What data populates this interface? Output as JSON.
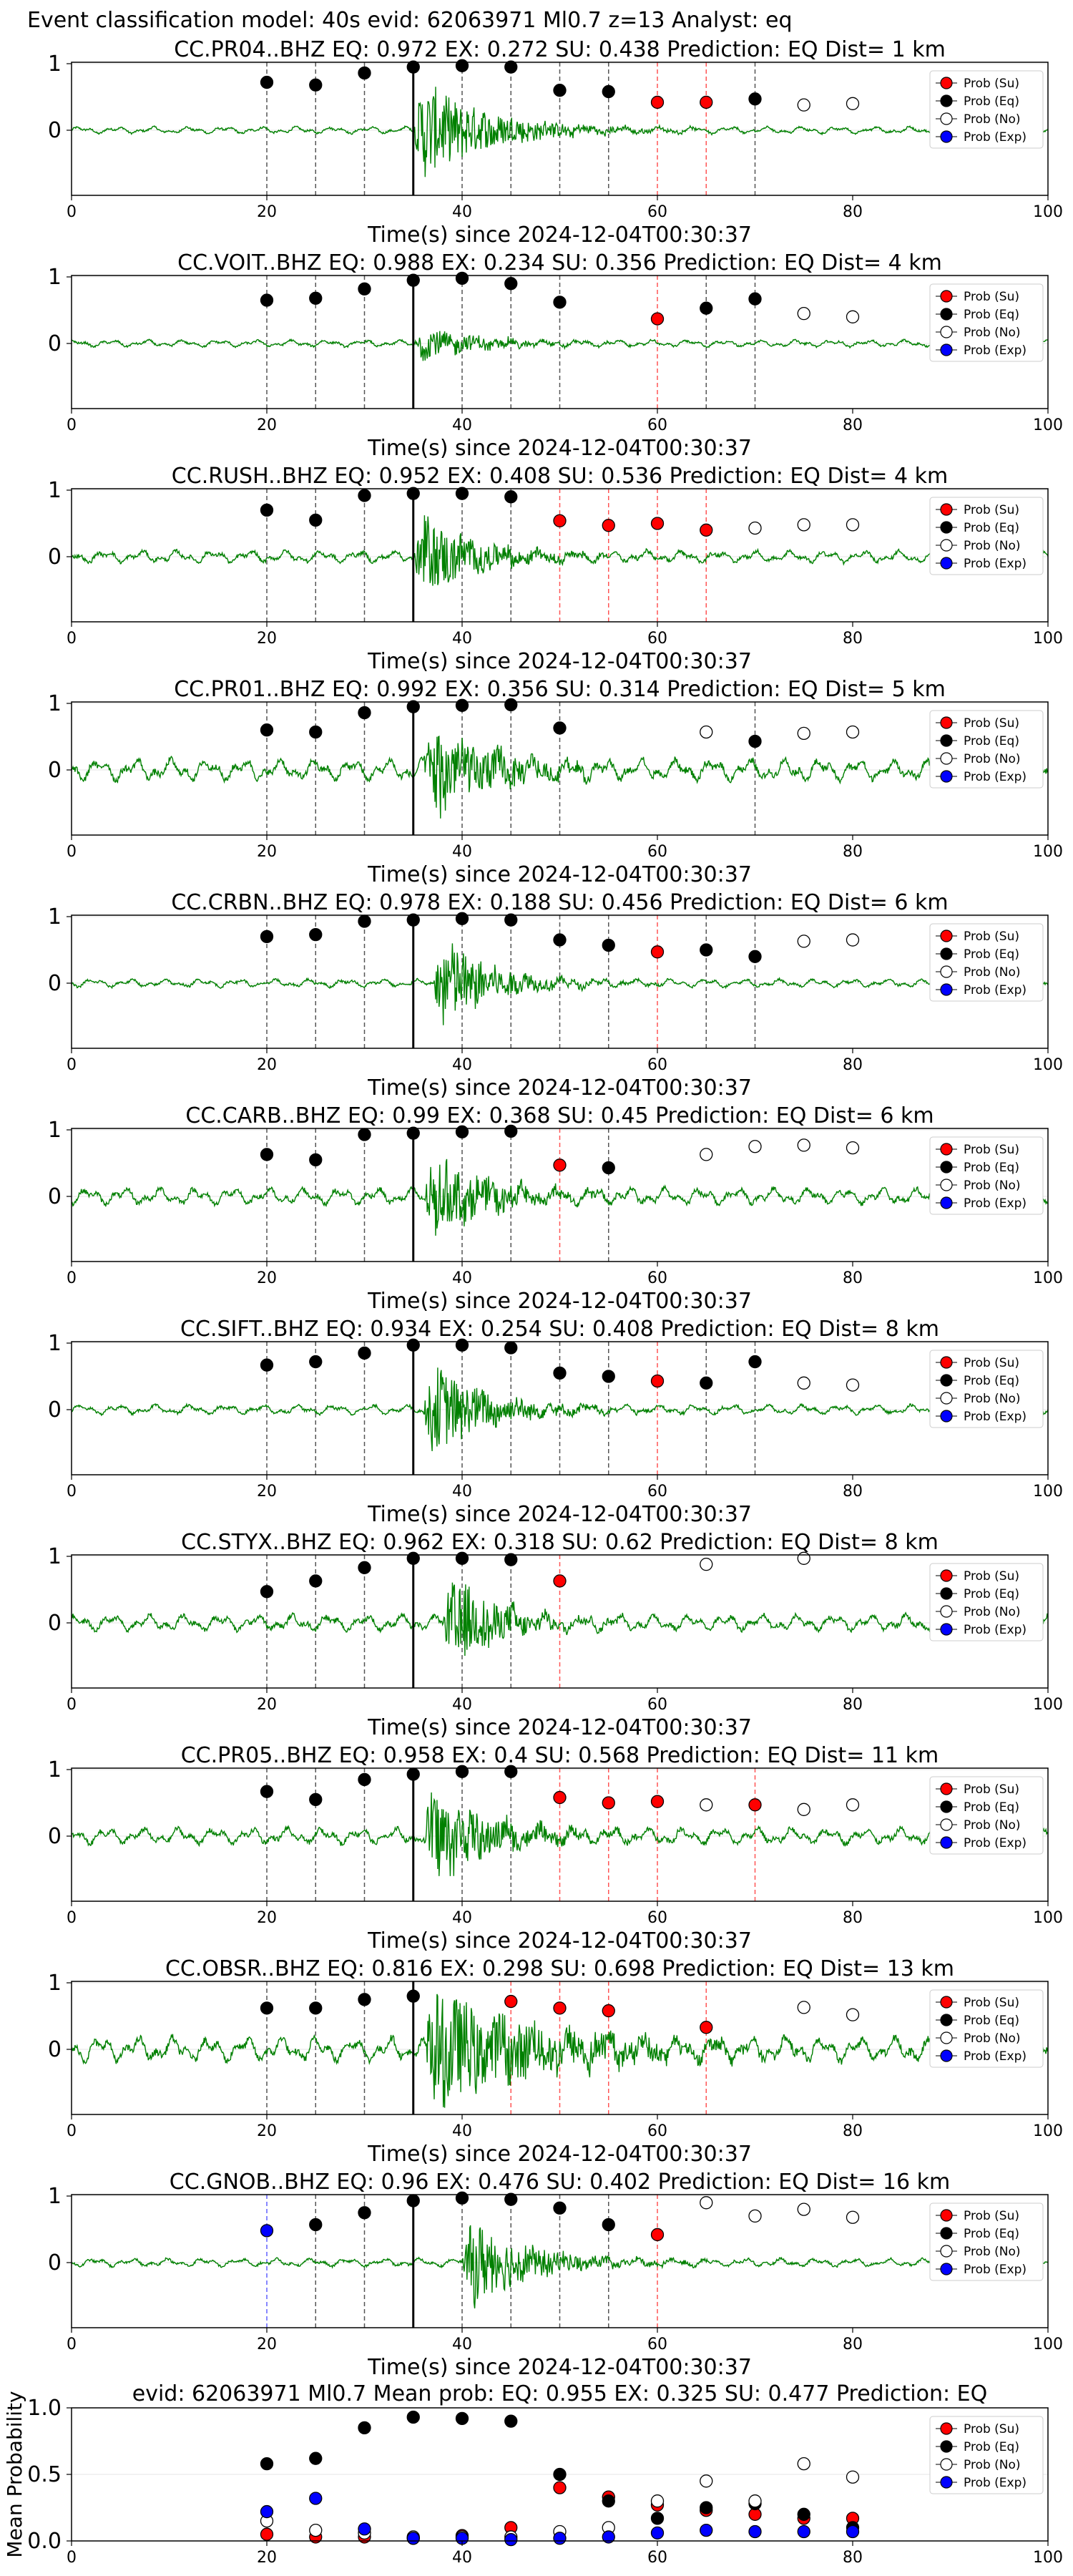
{
  "figure_title": "Event classification model: 40s evid: 62063971 Ml0.7 z=13 Analyst: eq",
  "legend_labels": [
    "Prob (Su)",
    "Prob (Eq)",
    "Prob (No)",
    "Prob (Exp)"
  ],
  "colors": {
    "su": "#ff0000",
    "eq": "#000000",
    "no": "#ffffff",
    "exp": "#0000ff",
    "trace": "#008000"
  },
  "chart_data": [
    {
      "type": "scatter",
      "station": "CC.PR04..BHZ",
      "title": "CC.PR04..BHZ   EQ: 0.972   EX: 0.272   SU: 0.438   Prediction: EQ    Dist= 1 km",
      "xlabel": "Time(s) since 2024-12-04T00:30:37",
      "xlim": [
        0,
        100
      ],
      "xticks": [
        0,
        20,
        40,
        60,
        80,
        100
      ],
      "yticks": [
        0,
        1
      ],
      "trace": {
        "onset": 35,
        "amp": 0.85,
        "noise": 0.05,
        "dur": 7
      },
      "points": [
        {
          "x": 20,
          "y": 0.72,
          "c": "eq"
        },
        {
          "x": 25,
          "y": 0.68,
          "c": "eq"
        },
        {
          "x": 30,
          "y": 0.86,
          "c": "eq"
        },
        {
          "x": 35,
          "y": 0.95,
          "c": "eq"
        },
        {
          "x": 40,
          "y": 0.97,
          "c": "eq"
        },
        {
          "x": 45,
          "y": 0.95,
          "c": "eq"
        },
        {
          "x": 50,
          "y": 0.6,
          "c": "eq"
        },
        {
          "x": 55,
          "y": 0.58,
          "c": "eq"
        },
        {
          "x": 60,
          "y": 0.42,
          "c": "su"
        },
        {
          "x": 65,
          "y": 0.42,
          "c": "su"
        },
        {
          "x": 70,
          "y": 0.47,
          "c": "eq"
        },
        {
          "x": 75,
          "y": 0.38,
          "c": "no"
        },
        {
          "x": 80,
          "y": 0.4,
          "c": "no"
        }
      ]
    },
    {
      "type": "scatter",
      "station": "CC.VOIT..BHZ",
      "title": "CC.VOIT..BHZ   EQ: 0.988   EX: 0.234   SU: 0.356   Prediction: EQ    Dist= 4 km",
      "xlabel": "Time(s) since 2024-12-04T00:30:37",
      "xlim": [
        0,
        100
      ],
      "xticks": [
        0,
        20,
        40,
        60,
        80,
        100
      ],
      "yticks": [
        0,
        1
      ],
      "trace": {
        "onset": 35,
        "amp": 0.3,
        "noise": 0.05,
        "dur": 6
      },
      "points": [
        {
          "x": 20,
          "y": 0.65,
          "c": "eq"
        },
        {
          "x": 25,
          "y": 0.68,
          "c": "eq"
        },
        {
          "x": 30,
          "y": 0.82,
          "c": "eq"
        },
        {
          "x": 35,
          "y": 0.95,
          "c": "eq"
        },
        {
          "x": 40,
          "y": 0.98,
          "c": "eq"
        },
        {
          "x": 45,
          "y": 0.9,
          "c": "eq"
        },
        {
          "x": 50,
          "y": 0.62,
          "c": "eq"
        },
        {
          "x": 60,
          "y": 0.37,
          "c": "su"
        },
        {
          "x": 65,
          "y": 0.53,
          "c": "eq"
        },
        {
          "x": 70,
          "y": 0.67,
          "c": "eq"
        },
        {
          "x": 75,
          "y": 0.45,
          "c": "no"
        },
        {
          "x": 80,
          "y": 0.4,
          "c": "no"
        }
      ]
    },
    {
      "type": "scatter",
      "station": "CC.RUSH..BHZ",
      "title": "CC.RUSH..BHZ   EQ: 0.952   EX: 0.408   SU: 0.536   Prediction: EQ    Dist= 4 km",
      "xlabel": "Time(s) since 2024-12-04T00:30:37",
      "xlim": [
        0,
        100
      ],
      "xticks": [
        0,
        20,
        40,
        60,
        80,
        100
      ],
      "yticks": [
        0,
        1
      ],
      "trace": {
        "onset": 35,
        "amp": 0.7,
        "noise": 0.09,
        "dur": 6
      },
      "points": [
        {
          "x": 20,
          "y": 0.7,
          "c": "eq"
        },
        {
          "x": 25,
          "y": 0.55,
          "c": "eq"
        },
        {
          "x": 30,
          "y": 0.92,
          "c": "eq"
        },
        {
          "x": 35,
          "y": 0.95,
          "c": "eq"
        },
        {
          "x": 40,
          "y": 0.95,
          "c": "eq"
        },
        {
          "x": 45,
          "y": 0.9,
          "c": "eq"
        },
        {
          "x": 50,
          "y": 0.54,
          "c": "su"
        },
        {
          "x": 55,
          "y": 0.47,
          "c": "su"
        },
        {
          "x": 60,
          "y": 0.5,
          "c": "su"
        },
        {
          "x": 65,
          "y": 0.4,
          "c": "su"
        },
        {
          "x": 70,
          "y": 0.43,
          "c": "no"
        },
        {
          "x": 75,
          "y": 0.48,
          "c": "no"
        },
        {
          "x": 80,
          "y": 0.48,
          "c": "no"
        }
      ]
    },
    {
      "type": "scatter",
      "station": "CC.PR01..BHZ",
      "title": "CC.PR01..BHZ   EQ: 0.992   EX: 0.356   SU: 0.314   Prediction: EQ    Dist= 5 km",
      "xlabel": "Time(s) since 2024-12-04T00:30:37",
      "xlim": [
        0,
        100
      ],
      "xticks": [
        0,
        20,
        40,
        60,
        80,
        100
      ],
      "yticks": [
        0,
        1
      ],
      "trace": {
        "onset": 36,
        "amp": 0.9,
        "noise": 0.16,
        "dur": 6
      },
      "points": [
        {
          "x": 20,
          "y": 0.6,
          "c": "eq"
        },
        {
          "x": 25,
          "y": 0.57,
          "c": "eq"
        },
        {
          "x": 30,
          "y": 0.86,
          "c": "eq"
        },
        {
          "x": 35,
          "y": 0.95,
          "c": "eq"
        },
        {
          "x": 40,
          "y": 0.97,
          "c": "eq"
        },
        {
          "x": 45,
          "y": 0.98,
          "c": "eq"
        },
        {
          "x": 50,
          "y": 0.63,
          "c": "eq"
        },
        {
          "x": 65,
          "y": 0.57,
          "c": "no"
        },
        {
          "x": 70,
          "y": 0.43,
          "c": "eq"
        },
        {
          "x": 75,
          "y": 0.55,
          "c": "no"
        },
        {
          "x": 80,
          "y": 0.57,
          "c": "no"
        }
      ]
    },
    {
      "type": "scatter",
      "station": "CC.CRBN..BHZ",
      "title": "CC.CRBN..BHZ   EQ: 0.978   EX: 0.188   SU: 0.456   Prediction: EQ    Dist= 6 km",
      "xlabel": "Time(s) since 2024-12-04T00:30:37",
      "xlim": [
        0,
        100
      ],
      "xticks": [
        0,
        20,
        40,
        60,
        80,
        100
      ],
      "yticks": [
        0,
        1
      ],
      "trace": {
        "onset": 37,
        "amp": 0.9,
        "noise": 0.06,
        "dur": 5
      },
      "points": [
        {
          "x": 20,
          "y": 0.7,
          "c": "eq"
        },
        {
          "x": 25,
          "y": 0.73,
          "c": "eq"
        },
        {
          "x": 30,
          "y": 0.93,
          "c": "eq"
        },
        {
          "x": 35,
          "y": 0.95,
          "c": "eq"
        },
        {
          "x": 40,
          "y": 0.97,
          "c": "eq"
        },
        {
          "x": 45,
          "y": 0.95,
          "c": "eq"
        },
        {
          "x": 50,
          "y": 0.65,
          "c": "eq"
        },
        {
          "x": 55,
          "y": 0.57,
          "c": "eq"
        },
        {
          "x": 60,
          "y": 0.47,
          "c": "su"
        },
        {
          "x": 65,
          "y": 0.5,
          "c": "eq"
        },
        {
          "x": 70,
          "y": 0.4,
          "c": "eq"
        },
        {
          "x": 75,
          "y": 0.63,
          "c": "no"
        },
        {
          "x": 80,
          "y": 0.65,
          "c": "no"
        }
      ]
    },
    {
      "type": "scatter",
      "station": "CC.CARB..BHZ",
      "title": "CC.CARB..BHZ   EQ: 0.99   EX: 0.368   SU: 0.45   Prediction: EQ    Dist= 6 km",
      "xlabel": "Time(s) since 2024-12-04T00:30:37",
      "xlim": [
        0,
        100
      ],
      "xticks": [
        0,
        20,
        40,
        60,
        80,
        100
      ],
      "yticks": [
        0,
        1
      ],
      "trace": {
        "onset": 36,
        "amp": 0.7,
        "noise": 0.12,
        "dur": 6
      },
      "points": [
        {
          "x": 20,
          "y": 0.63,
          "c": "eq"
        },
        {
          "x": 25,
          "y": 0.55,
          "c": "eq"
        },
        {
          "x": 30,
          "y": 0.93,
          "c": "eq"
        },
        {
          "x": 35,
          "y": 0.95,
          "c": "eq"
        },
        {
          "x": 40,
          "y": 0.97,
          "c": "eq"
        },
        {
          "x": 45,
          "y": 0.98,
          "c": "eq"
        },
        {
          "x": 50,
          "y": 0.47,
          "c": "su"
        },
        {
          "x": 55,
          "y": 0.43,
          "c": "eq"
        },
        {
          "x": 65,
          "y": 0.63,
          "c": "no"
        },
        {
          "x": 70,
          "y": 0.75,
          "c": "no"
        },
        {
          "x": 75,
          "y": 0.77,
          "c": "no"
        },
        {
          "x": 80,
          "y": 0.73,
          "c": "no"
        }
      ]
    },
    {
      "type": "scatter",
      "station": "CC.SIFT..BHZ",
      "title": "CC.SIFT..BHZ   EQ: 0.934   EX: 0.254   SU: 0.408   Prediction: EQ    Dist= 8 km",
      "xlabel": "Time(s) since 2024-12-04T00:30:37",
      "xlim": [
        0,
        100
      ],
      "xticks": [
        0,
        20,
        40,
        60,
        80,
        100
      ],
      "yticks": [
        0,
        1
      ],
      "trace": {
        "onset": 36,
        "amp": 0.8,
        "noise": 0.07,
        "dur": 6
      },
      "points": [
        {
          "x": 20,
          "y": 0.67,
          "c": "eq"
        },
        {
          "x": 25,
          "y": 0.72,
          "c": "eq"
        },
        {
          "x": 30,
          "y": 0.85,
          "c": "eq"
        },
        {
          "x": 35,
          "y": 0.97,
          "c": "eq"
        },
        {
          "x": 40,
          "y": 0.97,
          "c": "eq"
        },
        {
          "x": 45,
          "y": 0.93,
          "c": "eq"
        },
        {
          "x": 50,
          "y": 0.55,
          "c": "eq"
        },
        {
          "x": 55,
          "y": 0.5,
          "c": "eq"
        },
        {
          "x": 60,
          "y": 0.43,
          "c": "su"
        },
        {
          "x": 65,
          "y": 0.4,
          "c": "eq"
        },
        {
          "x": 70,
          "y": 0.72,
          "c": "eq"
        },
        {
          "x": 75,
          "y": 0.4,
          "c": "no"
        },
        {
          "x": 80,
          "y": 0.37,
          "c": "no"
        }
      ]
    },
    {
      "type": "scatter",
      "station": "CC.STYX..BHZ",
      "title": "CC.STYX..BHZ   EQ: 0.962   EX: 0.318   SU: 0.62   Prediction: EQ    Dist= 8 km",
      "xlabel": "Time(s) since 2024-12-04T00:30:37",
      "xlim": [
        0,
        100
      ],
      "xticks": [
        0,
        20,
        40,
        60,
        80,
        100
      ],
      "yticks": [
        0,
        1
      ],
      "trace": {
        "onset": 38,
        "amp": 0.9,
        "noise": 0.12,
        "dur": 5
      },
      "points": [
        {
          "x": 20,
          "y": 0.47,
          "c": "eq"
        },
        {
          "x": 25,
          "y": 0.63,
          "c": "eq"
        },
        {
          "x": 30,
          "y": 0.83,
          "c": "eq"
        },
        {
          "x": 35,
          "y": 0.97,
          "c": "eq"
        },
        {
          "x": 40,
          "y": 0.97,
          "c": "eq"
        },
        {
          "x": 45,
          "y": 0.95,
          "c": "eq"
        },
        {
          "x": 50,
          "y": 0.63,
          "c": "su"
        },
        {
          "x": 65,
          "y": 0.88,
          "c": "no"
        },
        {
          "x": 75,
          "y": 0.97,
          "c": "no"
        }
      ]
    },
    {
      "type": "scatter",
      "station": "CC.PR05..BHZ",
      "title": "CC.PR05..BHZ   EQ: 0.958   EX: 0.4   SU: 0.568   Prediction: EQ    Dist= 11 km",
      "xlabel": "Time(s) since 2024-12-04T00:30:37",
      "xlim": [
        0,
        100
      ],
      "xticks": [
        0,
        20,
        40,
        60,
        80,
        100
      ],
      "yticks": [
        0,
        1
      ],
      "trace": {
        "onset": 36,
        "amp": 0.85,
        "noise": 0.12,
        "dur": 6
      },
      "points": [
        {
          "x": 20,
          "y": 0.67,
          "c": "eq"
        },
        {
          "x": 25,
          "y": 0.55,
          "c": "eq"
        },
        {
          "x": 30,
          "y": 0.85,
          "c": "eq"
        },
        {
          "x": 35,
          "y": 0.93,
          "c": "eq"
        },
        {
          "x": 40,
          "y": 0.97,
          "c": "eq"
        },
        {
          "x": 45,
          "y": 0.97,
          "c": "eq"
        },
        {
          "x": 50,
          "y": 0.58,
          "c": "su"
        },
        {
          "x": 55,
          "y": 0.5,
          "c": "su"
        },
        {
          "x": 60,
          "y": 0.52,
          "c": "su"
        },
        {
          "x": 65,
          "y": 0.47,
          "c": "no"
        },
        {
          "x": 70,
          "y": 0.47,
          "c": "su"
        },
        {
          "x": 75,
          "y": 0.4,
          "c": "no"
        },
        {
          "x": 80,
          "y": 0.47,
          "c": "no"
        }
      ]
    },
    {
      "type": "scatter",
      "station": "CC.OBSR..BHZ",
      "title": "CC.OBSR..BHZ   EQ: 0.816   EX: 0.298   SU: 0.698   Prediction: EQ    Dist= 13 km",
      "xlabel": "Time(s) since 2024-12-04T00:30:37",
      "xlim": [
        0,
        100
      ],
      "xticks": [
        0,
        20,
        40,
        60,
        80,
        100
      ],
      "yticks": [
        0,
        1
      ],
      "trace": {
        "onset": 36,
        "amp": 0.95,
        "noise": 0.18,
        "dur": 12
      },
      "points": [
        {
          "x": 20,
          "y": 0.62,
          "c": "eq"
        },
        {
          "x": 25,
          "y": 0.62,
          "c": "eq"
        },
        {
          "x": 30,
          "y": 0.75,
          "c": "eq"
        },
        {
          "x": 35,
          "y": 0.8,
          "c": "eq"
        },
        {
          "x": 45,
          "y": 0.72,
          "c": "su"
        },
        {
          "x": 50,
          "y": 0.62,
          "c": "su"
        },
        {
          "x": 55,
          "y": 0.58,
          "c": "su"
        },
        {
          "x": 65,
          "y": 0.33,
          "c": "su"
        },
        {
          "x": 75,
          "y": 0.63,
          "c": "no"
        },
        {
          "x": 80,
          "y": 0.52,
          "c": "no"
        }
      ]
    },
    {
      "type": "scatter",
      "station": "CC.GNOB..BHZ",
      "title": "CC.GNOB..BHZ   EQ: 0.96   EX: 0.476   SU: 0.402   Prediction: EQ    Dist= 16 km",
      "xlabel": "Time(s) since 2024-12-04T00:30:37",
      "xlim": [
        0,
        100
      ],
      "xticks": [
        0,
        20,
        40,
        60,
        80,
        100
      ],
      "yticks": [
        0,
        1
      ],
      "trace": {
        "onset": 40,
        "amp": 0.8,
        "noise": 0.06,
        "dur": 6
      },
      "points": [
        {
          "x": 20,
          "y": 0.48,
          "c": "exp"
        },
        {
          "x": 25,
          "y": 0.57,
          "c": "eq"
        },
        {
          "x": 30,
          "y": 0.75,
          "c": "eq"
        },
        {
          "x": 35,
          "y": 0.93,
          "c": "eq"
        },
        {
          "x": 40,
          "y": 0.97,
          "c": "eq"
        },
        {
          "x": 45,
          "y": 0.95,
          "c": "eq"
        },
        {
          "x": 50,
          "y": 0.82,
          "c": "eq"
        },
        {
          "x": 55,
          "y": 0.57,
          "c": "eq"
        },
        {
          "x": 60,
          "y": 0.42,
          "c": "su"
        },
        {
          "x": 65,
          "y": 0.9,
          "c": "no"
        },
        {
          "x": 70,
          "y": 0.7,
          "c": "no"
        },
        {
          "x": 75,
          "y": 0.8,
          "c": "no"
        },
        {
          "x": 80,
          "y": 0.68,
          "c": "no"
        }
      ]
    },
    {
      "type": "scatter",
      "title": "evid: 62063971  Ml0.7   Mean prob:   EQ: 0.955  EX: 0.325  SU: 0.477   Prediction: EQ",
      "ylabel": "Mean Probability",
      "xlim": [
        0,
        100
      ],
      "ylim": [
        0,
        1
      ],
      "xticks": [
        0,
        20,
        40,
        60,
        80,
        100
      ],
      "yticks": [
        0,
        0.5,
        1
      ],
      "x": [
        20,
        25,
        30,
        35,
        40,
        45,
        50,
        55,
        60,
        65,
        70,
        75,
        80
      ],
      "series": [
        {
          "name": "Prob (Su)",
          "c": "su",
          "values": [
            0.05,
            0.03,
            0.03,
            0.02,
            0.04,
            0.1,
            0.4,
            0.33,
            0.27,
            0.23,
            0.2,
            0.17,
            0.17
          ]
        },
        {
          "name": "Prob (Eq)",
          "c": "eq",
          "values": [
            0.58,
            0.62,
            0.85,
            0.93,
            0.92,
            0.9,
            0.5,
            0.3,
            0.17,
            0.25,
            0.28,
            0.2,
            0.1
          ]
        },
        {
          "name": "Prob (No)",
          "c": "no",
          "values": [
            0.15,
            0.08,
            0.06,
            0.03,
            0.03,
            0.03,
            0.07,
            0.1,
            0.3,
            0.45,
            0.3,
            0.58,
            0.48
          ]
        },
        {
          "name": "Prob (Exp)",
          "c": "exp",
          "values": [
            0.22,
            0.32,
            0.09,
            0.02,
            0.02,
            0.01,
            0.02,
            0.03,
            0.06,
            0.08,
            0.07,
            0.07,
            0.07
          ]
        }
      ]
    }
  ]
}
